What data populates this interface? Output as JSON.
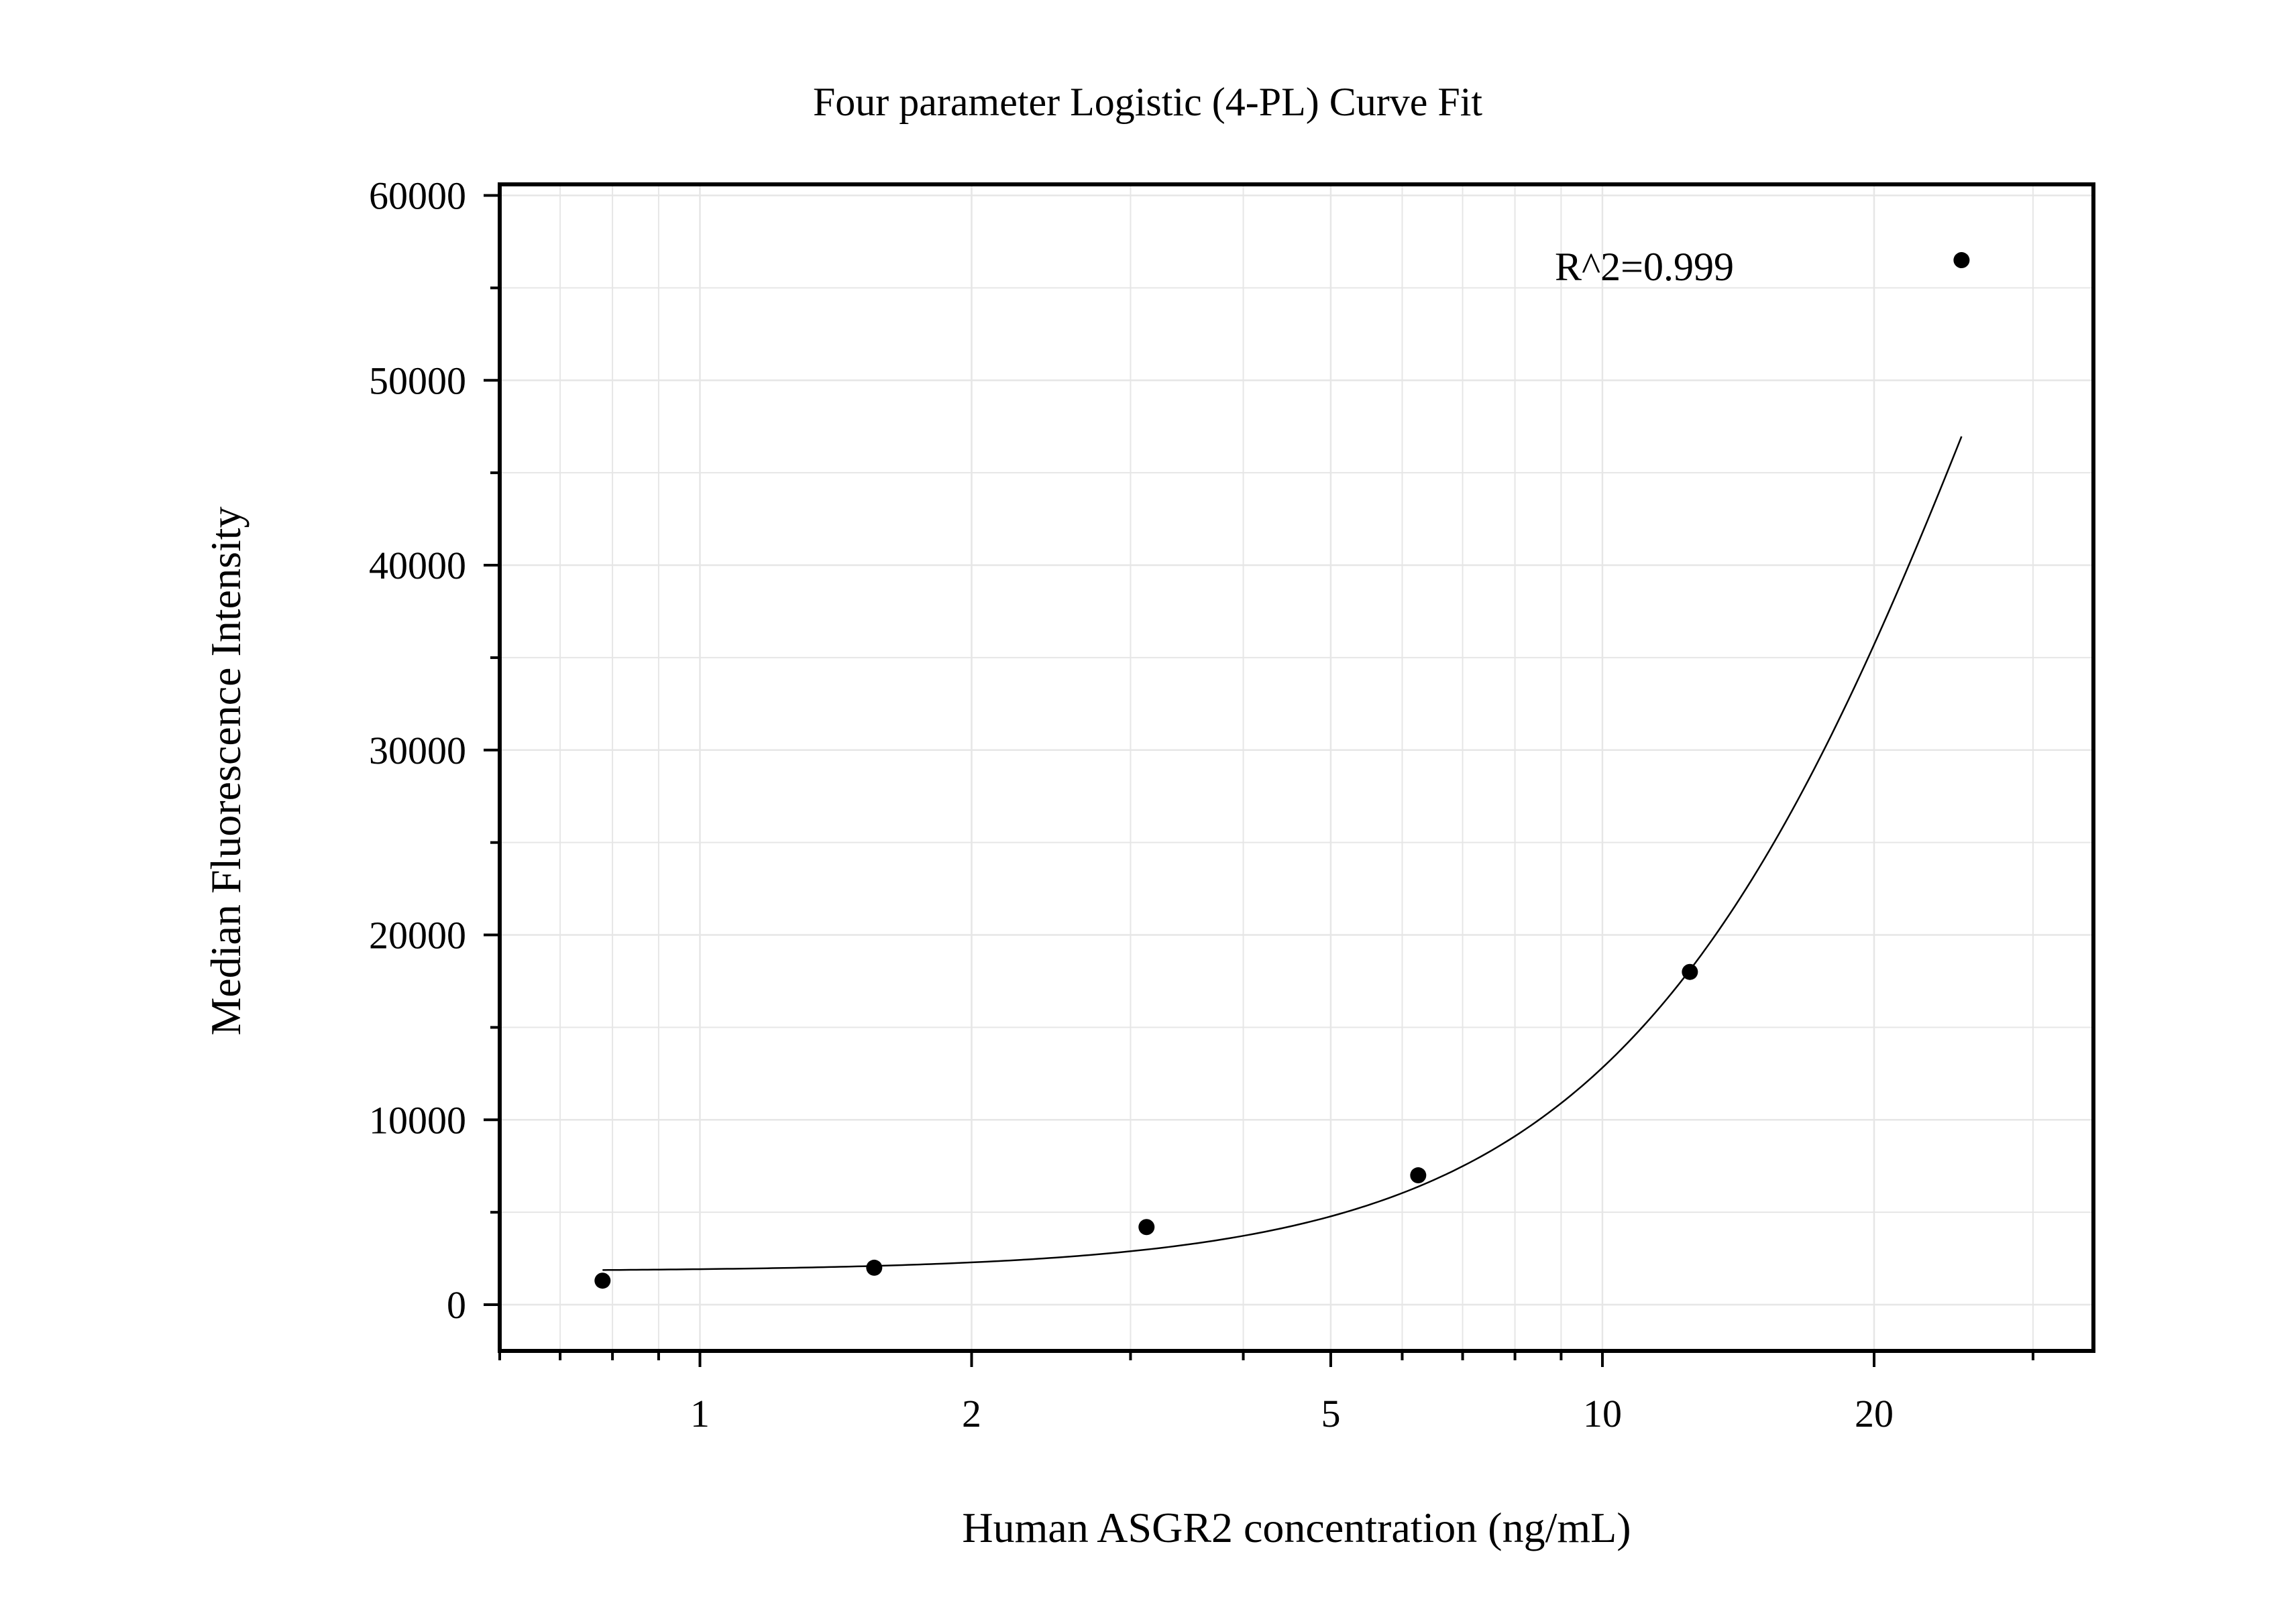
{
  "chart_data": {
    "type": "scatter",
    "title": "Four parameter Logistic (4-PL) Curve Fit",
    "xlabel": "Human ASGR2 concentration (ng/mL)",
    "ylabel": "Median Fluorescence Intensity",
    "x_scale": "log",
    "xlim": [
      0.6,
      35
    ],
    "ylim": [
      -2500,
      60600
    ],
    "x_ticks": [
      1,
      2,
      5,
      10,
      20
    ],
    "x_tick_labels": [
      "1",
      "2",
      "5",
      "10",
      "20"
    ],
    "y_ticks": [
      0,
      10000,
      20000,
      30000,
      40000,
      50000,
      60000
    ],
    "y_tick_labels": [
      "0",
      "10000",
      "20000",
      "30000",
      "40000",
      "50000",
      "60000"
    ],
    "grid": true,
    "annotation": "R^2=0.999",
    "series": [
      {
        "points": [
          {
            "x": 0.78,
            "y": 1300
          },
          {
            "x": 1.56,
            "y": 2000
          },
          {
            "x": 3.125,
            "y": 4200
          },
          {
            "x": 6.25,
            "y": 7000
          },
          {
            "x": 12.5,
            "y": 18000
          },
          {
            "x": 25,
            "y": 56500
          }
        ]
      }
    ],
    "fit": {
      "model": "4PL",
      "A": 1800,
      "B": 2.0,
      "C": 30,
      "D": 112000,
      "x_range": [
        0.78,
        25
      ]
    },
    "colors": {
      "points": "#000000",
      "curve": "#000000",
      "grid": "#e6e6e6",
      "frame": "#000000"
    }
  }
}
